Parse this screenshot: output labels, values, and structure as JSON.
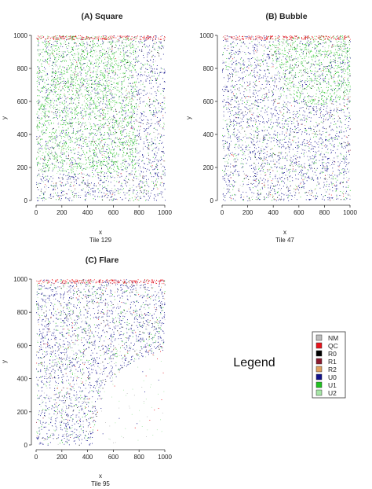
{
  "page": {
    "legend_heading": "Legend"
  },
  "legend": {
    "items": [
      {
        "label": "NM",
        "color": "#bdbdbd"
      },
      {
        "label": "QC",
        "color": "#e8141c"
      },
      {
        "label": "R0",
        "color": "#000000"
      },
      {
        "label": "R1",
        "color": "#8b1a2e"
      },
      {
        "label": "R2",
        "color": "#e0a060"
      },
      {
        "label": "U0",
        "color": "#11118c"
      },
      {
        "label": "U1",
        "color": "#1fc21f"
      },
      {
        "label": "U2",
        "color": "#a6e6a6"
      }
    ]
  },
  "chart_data": [
    {
      "type": "scatter",
      "title": "(A) Square",
      "xlabel": "x",
      "sublabel": "Tile 129",
      "ylabel": "y",
      "xlim": [
        0,
        1000
      ],
      "ylim": [
        0,
        1000
      ],
      "xticks": [
        0,
        200,
        400,
        600,
        800,
        1000
      ],
      "yticks": [
        0,
        200,
        400,
        600,
        800,
        1000
      ],
      "regions": [
        {
          "shape": "rect",
          "x0": 0,
          "x1": 780,
          "y0": 170,
          "y1": 1000,
          "dominant": "U1"
        }
      ],
      "background": "U0"
    },
    {
      "type": "scatter",
      "title": "(B) Bubble",
      "xlabel": "x",
      "sublabel": "Tile 47",
      "ylabel": "y",
      "xlim": [
        0,
        1000
      ],
      "ylim": [
        0,
        1000
      ],
      "xticks": [
        0,
        200,
        400,
        600,
        800,
        1000
      ],
      "yticks": [
        0,
        200,
        400,
        600,
        800,
        1000
      ],
      "regions": [
        {
          "shape": "circle",
          "cx": 780,
          "cy": 1000,
          "r": 420,
          "dominant": "U1"
        }
      ],
      "background": "U0"
    },
    {
      "type": "scatter",
      "title": "(C) Flare",
      "xlabel": "x",
      "sublabel": "Tile 95",
      "ylabel": "y",
      "xlim": [
        0,
        1000
      ],
      "ylim": [
        0,
        1000
      ],
      "xticks": [
        0,
        200,
        400,
        600,
        800,
        1000
      ],
      "yticks": [
        0,
        200,
        400,
        600,
        800,
        1000
      ],
      "regions": [
        {
          "shape": "circle",
          "cx": 1000,
          "cy": 0,
          "r": 560,
          "dominant": "empty"
        }
      ],
      "background": "U0"
    }
  ]
}
